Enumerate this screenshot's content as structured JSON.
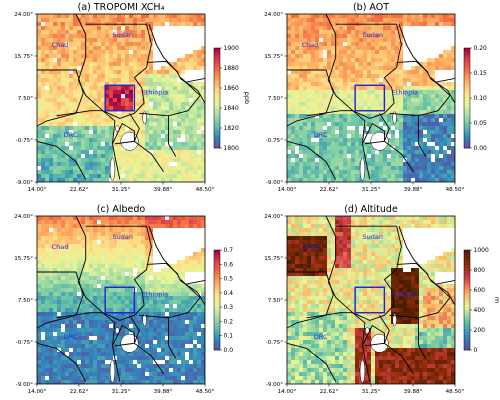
{
  "chart_data": [
    {
      "type": "heatmap",
      "title": "(a) TROPOMI XCH₄",
      "colorbar": {
        "ticks": [
          "1900",
          "1880",
          "1860",
          "1840",
          "1820",
          "1800"
        ],
        "unit": "ppb",
        "range": [
          1800,
          1900
        ]
      },
      "xticks": [
        "14.00°",
        "22.62°",
        "31.25°",
        "39.88°",
        "48.50°"
      ],
      "yticks": [
        "24.00°",
        "15.75°",
        "7.50°",
        "-0.75°",
        "-9.00°"
      ],
      "xlim": [
        14.0,
        48.5
      ],
      "ylim": [
        -9.0,
        24.0
      ],
      "regions": [
        "Chad",
        "Sudan",
        "Ethiopia",
        "DRC"
      ],
      "colormap": "Spectral_r"
    },
    {
      "type": "heatmap",
      "title": "(b) AOT",
      "colorbar": {
        "ticks": [
          "0.20",
          "0.15",
          "0.10",
          "0.05",
          "0.00"
        ],
        "unit": "",
        "range": [
          0.0,
          0.2
        ]
      },
      "xticks": [
        "14.00°",
        "22.62°",
        "31.25°",
        "39.88°",
        "48.50°"
      ],
      "yticks": [
        "24.00°",
        "15.75°",
        "7.50°",
        "-0.75°",
        "-9.00°"
      ],
      "xlim": [
        14.0,
        48.5
      ],
      "ylim": [
        -9.0,
        24.0
      ],
      "regions": [
        "Chad",
        "Sudan",
        "Ethiopia",
        "DRC"
      ],
      "colormap": "Spectral_r"
    },
    {
      "type": "heatmap",
      "title": "(c) Albedo",
      "colorbar": {
        "ticks": [
          "0.7",
          "0.6",
          "0.5",
          "0.4",
          "0.3",
          "0.2",
          "0.1",
          "0.0"
        ],
        "unit": "",
        "range": [
          0.0,
          0.7
        ]
      },
      "xticks": [
        "14.00°",
        "22.62°",
        "31.25°",
        "39.88°",
        "48.50°"
      ],
      "yticks": [
        "24.00°",
        "15.75°",
        "7.50°",
        "-0.75°",
        "-9.00°"
      ],
      "xlim": [
        14.0,
        48.5
      ],
      "ylim": [
        -9.0,
        24.0
      ],
      "regions": [
        "Chad",
        "Sudan",
        "Ethiopia",
        "DRC"
      ],
      "colormap": "Spectral_r"
    },
    {
      "type": "heatmap",
      "title": "(d) Altitude",
      "colorbar": {
        "ticks": [
          "1000",
          "800",
          "600",
          "400",
          "200",
          "0"
        ],
        "unit": "m",
        "range": [
          0,
          1000
        ]
      },
      "xticks": [
        "14.00°",
        "22.62°",
        "31.25°",
        "39.88°",
        "48.50°"
      ],
      "yticks": [
        "24.00°",
        "15.75°",
        "7.50°",
        "-0.75°",
        "-9.00°"
      ],
      "xlim": [
        14.0,
        48.5
      ],
      "ylim": [
        -9.0,
        24.0
      ],
      "regions": [
        "Chad",
        "Sudan",
        "Ethiopia",
        "DRC"
      ],
      "colormap": "Spectral_r"
    }
  ],
  "colors": {
    "colormap_stops": [
      "#5e4fa2",
      "#3288bd",
      "#66c2a5",
      "#abdda4",
      "#e6f598",
      "#fee08b",
      "#fdae61",
      "#f46d43",
      "#d53e4f",
      "#9e0142"
    ],
    "altitude_stops": [
      "#5e4fa2",
      "#3288bd",
      "#66c2a5",
      "#e6f598",
      "#fdae61",
      "#d53e4f",
      "#8c2d04",
      "#4a1c04"
    ],
    "study_box": "#1f22d6",
    "region_label": "#2a2adf",
    "water": "#ffffff",
    "borders": "#000000"
  }
}
